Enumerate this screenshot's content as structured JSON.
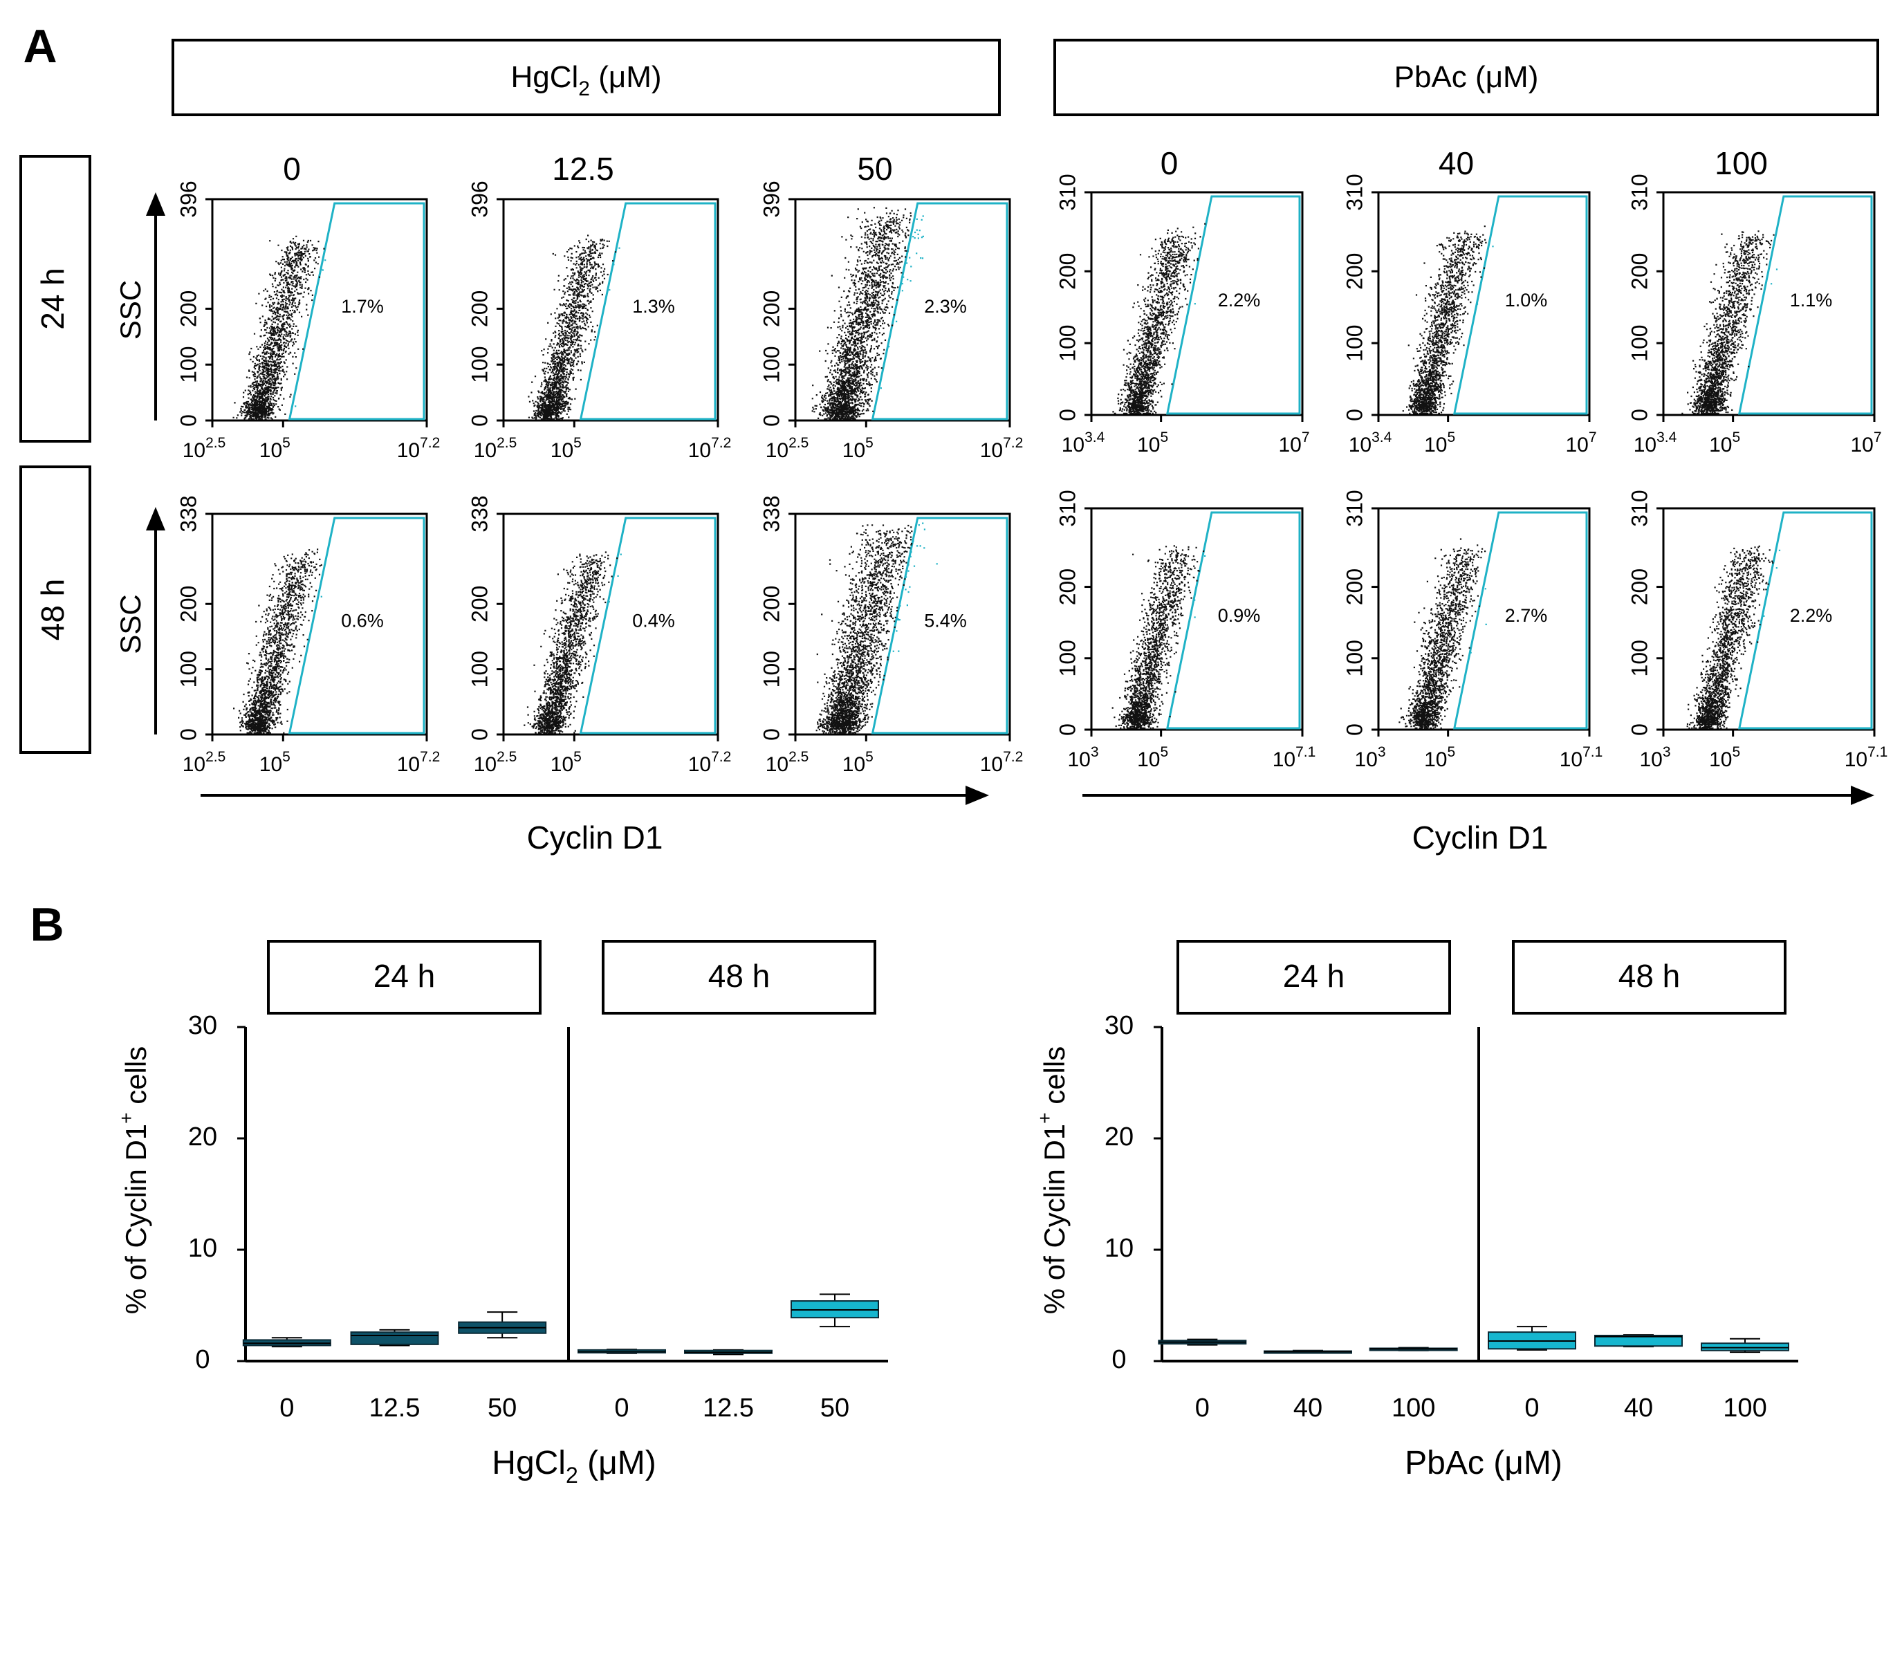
{
  "panel_labels": {
    "a": "A",
    "b": "B"
  },
  "colors": {
    "gate": "#1fb2c6",
    "dark_box": "#0e5268",
    "light_box": "#16b6cf",
    "dots": "#111111",
    "axis": "#000000"
  },
  "panel_a": {
    "groups": [
      {
        "header": {
          "name": "HgCl",
          "sub": "2",
          "unit": " (μM)"
        },
        "concentrations": [
          "0",
          "12.5",
          "50"
        ],
        "x_label": "Cyclin D1",
        "rows": [
          {
            "time": "24 h",
            "y_label": "SSC",
            "y_ticks": [
              "396",
              "200",
              "100",
              "0"
            ],
            "x_ticks": [
              {
                "base": "10",
                "exp": "2.5"
              },
              {
                "base": "10",
                "exp": "5"
              },
              {
                "base": "10",
                "exp": "7.2"
              }
            ],
            "percents": [
              "1.7%",
              "1.3%",
              "2.3%"
            ]
          },
          {
            "time": "48 h",
            "y_label": "SSC",
            "y_ticks": [
              "338",
              "200",
              "100",
              "0"
            ],
            "x_ticks": [
              {
                "base": "10",
                "exp": "2.5"
              },
              {
                "base": "10",
                "exp": "5"
              },
              {
                "base": "10",
                "exp": "7.2"
              }
            ],
            "percents": [
              "0.6%",
              "0.4%",
              "5.4%"
            ]
          }
        ]
      },
      {
        "header": {
          "name": "PbAc",
          "sub": "",
          "unit": " (μM)"
        },
        "concentrations": [
          "0",
          "40",
          "100"
        ],
        "x_label": "Cyclin D1",
        "rows": [
          {
            "time": "24 h",
            "y_label": "",
            "y_ticks": [
              "310",
              "200",
              "100",
              "0"
            ],
            "x_ticks": [
              {
                "base": "10",
                "exp": "3.4"
              },
              {
                "base": "10",
                "exp": "5"
              },
              {
                "base": "10",
                "exp": "7"
              }
            ],
            "percents": [
              "2.2%",
              "1.0%",
              "1.1%"
            ]
          },
          {
            "time": "48 h",
            "y_label": "",
            "y_ticks": [
              "310",
              "200",
              "100",
              "0"
            ],
            "x_ticks": [
              {
                "base": "10",
                "exp": "3"
              },
              {
                "base": "10",
                "exp": "5"
              },
              {
                "base": "10",
                "exp": "7.1"
              }
            ],
            "percents": [
              "0.9%",
              "2.7%",
              "2.2%"
            ]
          }
        ]
      }
    ]
  },
  "chart_data": [
    {
      "type": "box",
      "title": "HgCl2 (μM)",
      "xlabel": {
        "name": "HgCl",
        "sub": "2",
        "unit": " (μM)"
      },
      "ylabel": {
        "pre": "% of Cyclin D1",
        "sup": "+",
        "post": " cells"
      },
      "ylim": [
        0,
        30
      ],
      "yticks": [
        "0",
        "10",
        "20",
        "30"
      ],
      "facets": [
        {
          "label": "24 h",
          "categories": [
            "0",
            "12.5",
            "50"
          ],
          "boxes": [
            {
              "min": 1.3,
              "q1": 1.4,
              "median": 1.6,
              "q3": 1.9,
              "max": 2.1
            },
            {
              "min": 1.4,
              "q1": 1.5,
              "median": 2.3,
              "q3": 2.6,
              "max": 2.8
            },
            {
              "min": 2.1,
              "q1": 2.5,
              "median": 3.0,
              "q3": 3.5,
              "max": 4.4
            }
          ]
        },
        {
          "label": "48 h",
          "categories": [
            "0",
            "12.5",
            "50"
          ],
          "boxes": [
            {
              "min": 0.7,
              "q1": 0.75,
              "median": 0.85,
              "q3": 1.0,
              "max": 1.05
            },
            {
              "min": 0.6,
              "q1": 0.7,
              "median": 0.8,
              "q3": 0.95,
              "max": 1.0
            },
            {
              "min": 3.1,
              "q1": 3.9,
              "median": 4.6,
              "q3": 5.4,
              "max": 6.0
            }
          ]
        }
      ]
    },
    {
      "type": "box",
      "title": "PbAc (μM)",
      "xlabel": {
        "name": "PbAc",
        "sub": "",
        "unit": " (μM)"
      },
      "ylabel": {
        "pre": "% of Cyclin D1",
        "sup": "+",
        "post": " cells"
      },
      "ylim": [
        0,
        30
      ],
      "yticks": [
        "0",
        "10",
        "20",
        "30"
      ],
      "facets": [
        {
          "label": "24 h",
          "categories": [
            "0",
            "40",
            "100"
          ],
          "boxes": [
            {
              "min": 1.45,
              "q1": 1.55,
              "median": 1.7,
              "q3": 1.85,
              "max": 1.95
            },
            {
              "min": 0.75,
              "q1": 0.8,
              "median": 0.85,
              "q3": 0.9,
              "max": 0.95
            },
            {
              "min": 0.95,
              "q1": 1.0,
              "median": 1.1,
              "q3": 1.15,
              "max": 1.2
            }
          ]
        },
        {
          "label": "48 h",
          "categories": [
            "0",
            "40",
            "100"
          ],
          "boxes": [
            {
              "min": 1.0,
              "q1": 1.1,
              "median": 1.8,
              "q3": 2.6,
              "max": 3.1
            },
            {
              "min": 1.3,
              "q1": 1.35,
              "median": 2.2,
              "q3": 2.3,
              "max": 2.35
            },
            {
              "min": 0.8,
              "q1": 0.95,
              "median": 1.2,
              "q3": 1.6,
              "max": 2.0
            }
          ]
        }
      ]
    }
  ]
}
